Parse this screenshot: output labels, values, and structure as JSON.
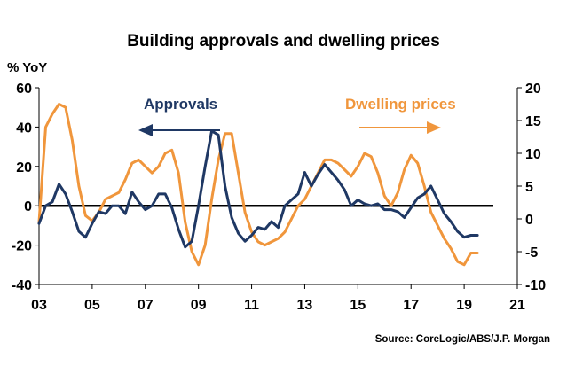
{
  "chart_data": {
    "type": "line",
    "title": "Building approvals and dwelling prices",
    "ylabel": "% YoY",
    "source": "Source: CoreLogic/ABS/J.P. Morgan",
    "x_ticks": [
      "03",
      "05",
      "07",
      "09",
      "11",
      "13",
      "15",
      "17",
      "19",
      "21"
    ],
    "xlim": [
      2003,
      2021
    ],
    "y_left": {
      "ticks": [
        "60",
        "40",
        "20",
        "0",
        "-20",
        "-40"
      ],
      "lim": [
        -40,
        60
      ]
    },
    "y_right": {
      "ticks": [
        "20",
        "15",
        "10",
        "5",
        "0",
        "-5",
        "-10"
      ],
      "lim": [
        -10,
        20
      ]
    },
    "zero_line": true,
    "colors": {
      "approvals": "#1f3864",
      "dwelling_prices": "#f0963c",
      "zero": "#000000"
    },
    "annotations": [
      {
        "text": "Approvals",
        "series": "approvals",
        "arrow": "left"
      },
      {
        "text": "Dwelling prices",
        "series": "dwelling_prices",
        "arrow": "right"
      }
    ],
    "series": [
      {
        "name": "Approvals",
        "axis": "left",
        "x": [
          2003.0,
          2003.25,
          2003.5,
          2003.75,
          2004.0,
          2004.25,
          2004.5,
          2004.75,
          2005.0,
          2005.25,
          2005.5,
          2005.75,
          2006.0,
          2006.25,
          2006.5,
          2006.75,
          2007.0,
          2007.25,
          2007.5,
          2007.75,
          2008.0,
          2008.25,
          2008.5,
          2008.75,
          2009.0,
          2009.25,
          2009.5,
          2009.75,
          2010.0,
          2010.25,
          2010.5,
          2010.75,
          2011.0,
          2011.25,
          2011.5,
          2011.75,
          2012.0,
          2012.25,
          2012.5,
          2012.75,
          2013.0,
          2013.25,
          2013.5,
          2013.75,
          2014.0,
          2014.25,
          2014.5,
          2014.75,
          2015.0,
          2015.25,
          2015.5,
          2015.75,
          2016.0,
          2016.25,
          2016.5,
          2016.75,
          2017.0,
          2017.25,
          2017.5,
          2017.75,
          2018.0,
          2018.25,
          2018.5,
          2018.75,
          2019.0,
          2019.25,
          2019.5
        ],
        "values": [
          -9,
          0,
          2,
          11,
          6,
          -3,
          -13,
          -16,
          -9,
          -3,
          -4,
          0,
          0,
          -4,
          7,
          2,
          -2,
          0,
          6,
          6,
          -1,
          -12,
          -21,
          -18,
          0,
          20,
          38,
          36,
          10,
          -6,
          -14,
          -18,
          -15,
          -11,
          -12,
          -8,
          -11,
          0,
          3,
          6,
          17,
          10,
          16,
          21,
          17,
          13,
          8,
          0,
          3,
          1,
          0,
          1,
          -2,
          -2,
          -3,
          -6,
          -1,
          4,
          6,
          10,
          3,
          -4,
          -8,
          -13,
          -16,
          -15,
          -15
        ]
      },
      {
        "name": "Dwelling prices",
        "axis": "right",
        "x": [
          2003.0,
          2003.25,
          2003.5,
          2003.75,
          2004.0,
          2004.25,
          2004.5,
          2004.75,
          2005.0,
          2005.25,
          2005.5,
          2005.75,
          2006.0,
          2006.25,
          2006.5,
          2006.75,
          2007.0,
          2007.25,
          2007.5,
          2007.75,
          2008.0,
          2008.25,
          2008.5,
          2008.75,
          2009.0,
          2009.25,
          2009.5,
          2009.75,
          2010.0,
          2010.25,
          2010.5,
          2010.75,
          2011.0,
          2011.25,
          2011.5,
          2011.75,
          2012.0,
          2012.25,
          2012.5,
          2012.75,
          2013.0,
          2013.25,
          2013.5,
          2013.75,
          2014.0,
          2014.25,
          2014.5,
          2014.75,
          2015.0,
          2015.25,
          2015.5,
          2015.75,
          2016.0,
          2016.25,
          2016.5,
          2016.75,
          2017.0,
          2017.25,
          2017.5,
          2017.75,
          2018.0,
          2018.25,
          2018.5,
          2018.75,
          2019.0,
          2019.25,
          2019.5
        ],
        "values": [
          -0.5,
          14,
          16,
          17.5,
          17,
          12,
          5,
          0.5,
          -0.3,
          1,
          3,
          3.5,
          4,
          6,
          8.5,
          9,
          8,
          7,
          8,
          10,
          10.5,
          7,
          -0.5,
          -5,
          -7,
          -4,
          3,
          9,
          13,
          13,
          7,
          1,
          -2,
          -3.5,
          -4,
          -3.5,
          -3,
          -2,
          0,
          2,
          3,
          5,
          7,
          9,
          9,
          8.5,
          7.5,
          6.5,
          8,
          10,
          9.5,
          7,
          3.5,
          2,
          4,
          7.5,
          9.7,
          8.5,
          5,
          1,
          -1,
          -3,
          -4.5,
          -6.5,
          -7,
          -5.2,
          -5.2
        ]
      }
    ]
  }
}
